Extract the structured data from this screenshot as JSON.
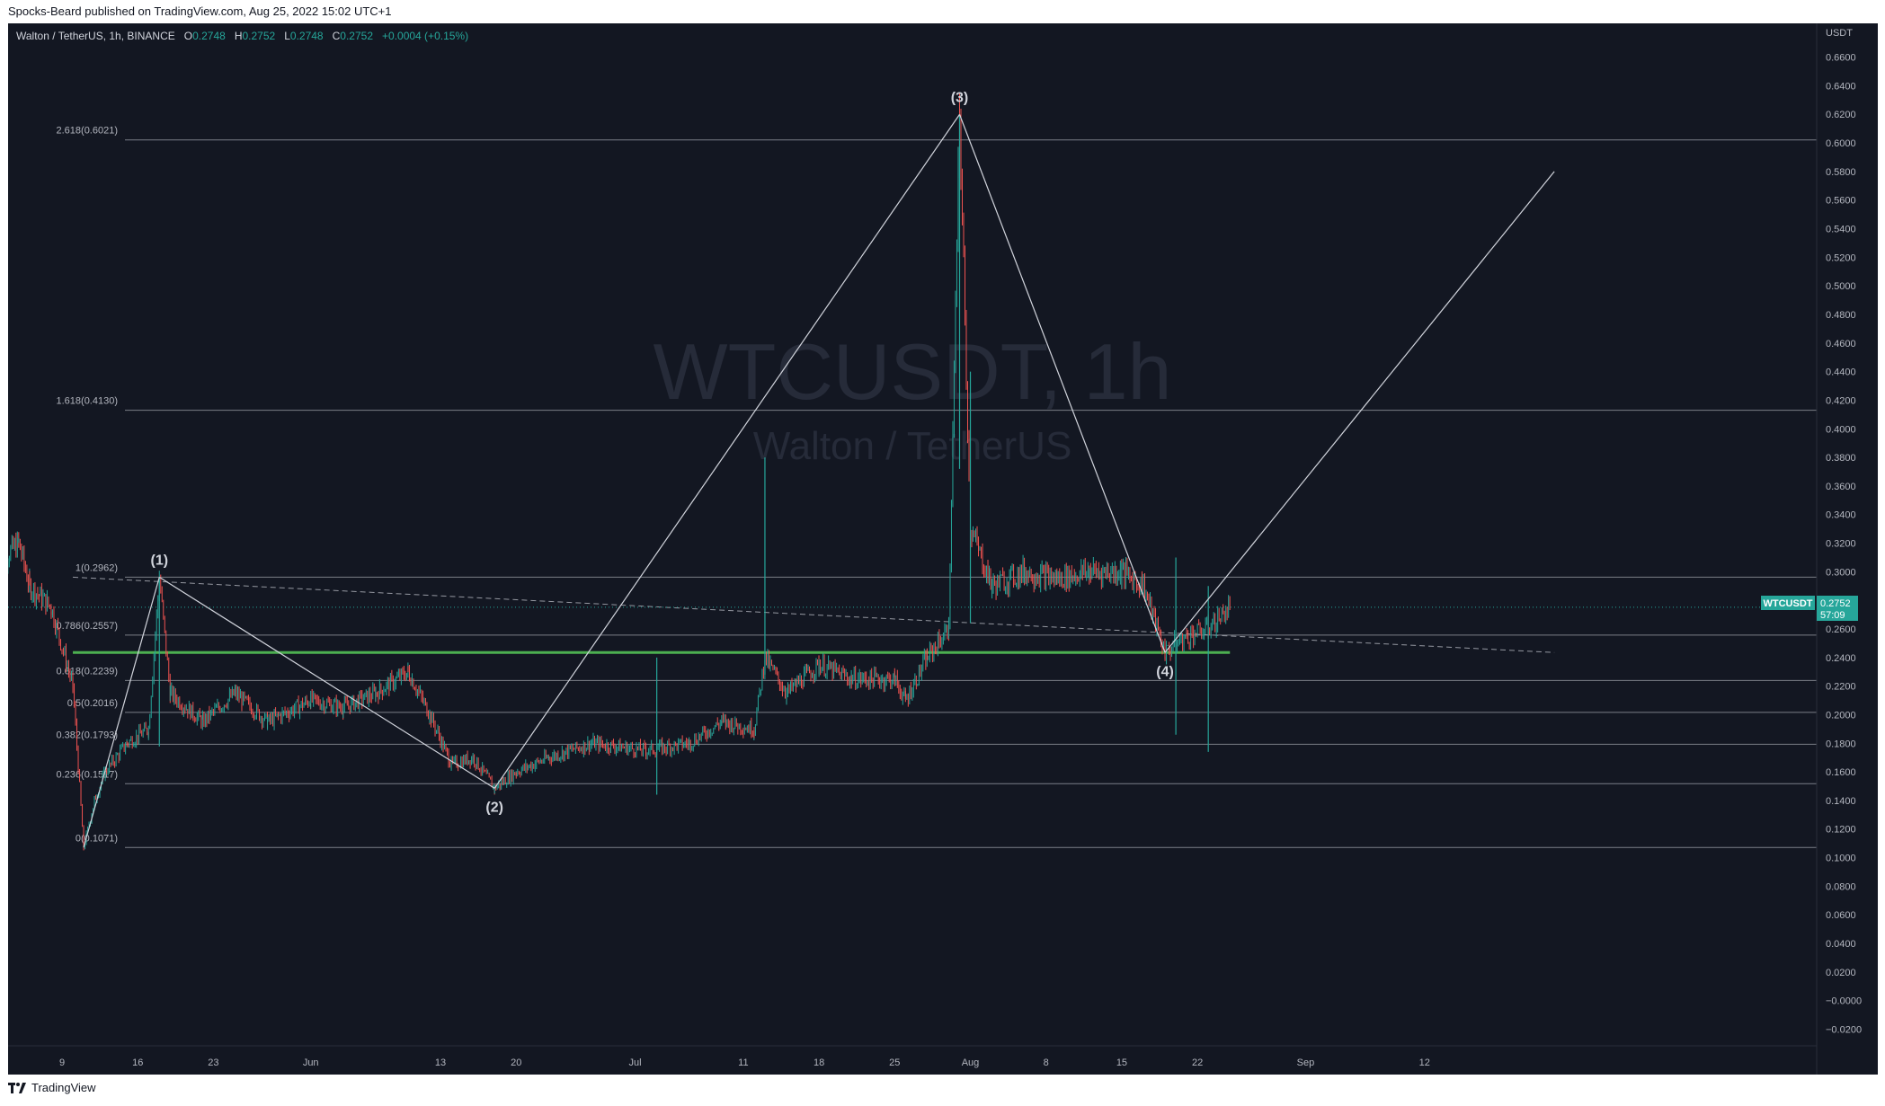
{
  "header": {
    "published": "Spocks-Beard published on TradingView.com, Aug 25, 2022 15:02 UTC+1"
  },
  "legend": {
    "symbol": "Walton / TetherUS, 1h, BINANCE",
    "o_label": "O",
    "o": "0.2748",
    "h_label": "H",
    "h": "0.2752",
    "l_label": "L",
    "l": "0.2748",
    "c_label": "C",
    "c": "0.2752",
    "change": "+0.0004 (+0.15%)"
  },
  "watermark": {
    "main": "WTCUSDT, 1h",
    "sub": "Walton / TetherUS"
  },
  "price_tag": {
    "symbol": "WTCUSDT",
    "price": "0.2752",
    "countdown": "57:09"
  },
  "footer": {
    "brand": "TradingView"
  },
  "colors": {
    "background": "#131722",
    "up": "#26a69a",
    "down": "#ef5350",
    "support": "#4caf50",
    "text": "#b2b5be"
  },
  "chart_data": {
    "type": "candlestick",
    "y_axis_unit": "USDT",
    "y_ticks": [
      "0.6600",
      "0.6400",
      "0.6200",
      "0.6000",
      "0.5800",
      "0.5600",
      "0.5400",
      "0.5200",
      "0.5000",
      "0.4800",
      "0.4600",
      "0.4400",
      "0.4200",
      "0.4000",
      "0.3800",
      "0.3600",
      "0.3400",
      "0.3200",
      "0.3000",
      "0.2800",
      "0.2600",
      "0.2400",
      "0.2200",
      "0.2000",
      "0.1800",
      "0.1600",
      "0.1400",
      "0.1200",
      "0.1000",
      "0.0800",
      "0.0600",
      "0.0400",
      "0.0200",
      "−0.0000",
      "−0.0200"
    ],
    "x_ticks": [
      {
        "label": "9",
        "date": "2022-05-09"
      },
      {
        "label": "16",
        "date": "2022-05-16"
      },
      {
        "label": "23",
        "date": "2022-05-23"
      },
      {
        "label": "Jun",
        "date": "2022-06-01"
      },
      {
        "label": "13",
        "date": "2022-06-13"
      },
      {
        "label": "20",
        "date": "2022-06-20"
      },
      {
        "label": "Jul",
        "date": "2022-07-01"
      },
      {
        "label": "11",
        "date": "2022-07-11"
      },
      {
        "label": "18",
        "date": "2022-07-18"
      },
      {
        "label": "25",
        "date": "2022-07-25"
      },
      {
        "label": "Aug",
        "date": "2022-08-01"
      },
      {
        "label": "8",
        "date": "2022-08-08"
      },
      {
        "label": "15",
        "date": "2022-08-15"
      },
      {
        "label": "22",
        "date": "2022-08-22"
      },
      {
        "label": "Sep",
        "date": "2022-09-01"
      },
      {
        "label": "12",
        "date": "2022-09-12"
      }
    ],
    "price_path": [
      [
        "2022-05-03",
        0.305
      ],
      [
        "2022-05-05",
        0.32
      ],
      [
        "2022-05-06",
        0.29
      ],
      [
        "2022-05-08",
        0.275
      ],
      [
        "2022-05-10",
        0.22
      ],
      [
        "2022-05-11",
        0.1071
      ],
      [
        "2022-05-12",
        0.14
      ],
      [
        "2022-05-13",
        0.16
      ],
      [
        "2022-05-15",
        0.18
      ],
      [
        "2022-05-17",
        0.19
      ],
      [
        "2022-05-18",
        0.2962
      ],
      [
        "2022-05-19",
        0.215
      ],
      [
        "2022-05-22",
        0.195
      ],
      [
        "2022-05-25",
        0.215
      ],
      [
        "2022-05-28",
        0.195
      ],
      [
        "2022-06-01",
        0.21
      ],
      [
        "2022-06-04",
        0.205
      ],
      [
        "2022-06-07",
        0.215
      ],
      [
        "2022-06-10",
        0.23
      ],
      [
        "2022-06-12",
        0.2
      ],
      [
        "2022-06-14",
        0.165
      ],
      [
        "2022-06-16",
        0.17
      ],
      [
        "2022-06-18",
        0.1485
      ],
      [
        "2022-06-20",
        0.16
      ],
      [
        "2022-06-23",
        0.17
      ],
      [
        "2022-06-27",
        0.18
      ],
      [
        "2022-07-02",
        0.175
      ],
      [
        "2022-07-06",
        0.18
      ],
      [
        "2022-07-09",
        0.195
      ],
      [
        "2022-07-12",
        0.19
      ],
      [
        "2022-07-13",
        0.24
      ],
      [
        "2022-07-15",
        0.215
      ],
      [
        "2022-07-18",
        0.235
      ],
      [
        "2022-07-21",
        0.225
      ],
      [
        "2022-07-25",
        0.225
      ],
      [
        "2022-07-26",
        0.21
      ],
      [
        "2022-07-28",
        0.24
      ],
      [
        "2022-07-30",
        0.26
      ],
      [
        "2022-07-31",
        0.6199
      ],
      [
        "2022-08-01",
        0.33
      ],
      [
        "2022-08-03",
        0.29
      ],
      [
        "2022-08-06",
        0.3
      ],
      [
        "2022-08-09",
        0.295
      ],
      [
        "2022-08-12",
        0.3
      ],
      [
        "2022-08-15",
        0.3
      ],
      [
        "2022-08-17",
        0.29
      ],
      [
        "2022-08-19",
        0.2435
      ],
      [
        "2022-08-21",
        0.255
      ],
      [
        "2022-08-23",
        0.26
      ],
      [
        "2022-08-25",
        0.2752
      ]
    ],
    "wick_highs": [
      [
        "2022-05-18",
        0.2962
      ],
      [
        "2022-07-13",
        0.38
      ],
      [
        "2022-07-31",
        0.6199
      ],
      [
        "2022-08-01",
        0.44
      ],
      [
        "2022-07-03",
        0.24
      ],
      [
        "2022-08-20",
        0.31
      ],
      [
        "2022-08-23",
        0.29
      ]
    ],
    "fibonacci": [
      {
        "label": "0(0.1071)",
        "value": 0.1071
      },
      {
        "label": "0.236(0.1517)",
        "value": 0.1517
      },
      {
        "label": "0.382(0.1793)",
        "value": 0.1793
      },
      {
        "label": "0.5(0.2016)",
        "value": 0.2016
      },
      {
        "label": "0.618(0.2239)",
        "value": 0.2239
      },
      {
        "label": "0.786(0.2557)",
        "value": 0.2557
      },
      {
        "label": "1(0.2962)",
        "value": 0.2962
      },
      {
        "label": "1.618(0.4130)",
        "value": 0.413
      },
      {
        "label": "2.618(0.6021)",
        "value": 0.6021
      }
    ],
    "waves": [
      {
        "label": "(1)",
        "date": "2022-05-18",
        "price": 0.2962,
        "pos": "above"
      },
      {
        "label": "(2)",
        "date": "2022-06-18",
        "price": 0.1485,
        "pos": "below"
      },
      {
        "label": "(3)",
        "date": "2022-07-31",
        "price": 0.6199,
        "pos": "above"
      },
      {
        "label": "(4)",
        "date": "2022-08-19",
        "price": 0.2435,
        "pos": "below"
      }
    ],
    "wave_path": [
      [
        "2022-05-11",
        0.1071
      ],
      [
        "2022-05-18",
        0.2962
      ],
      [
        "2022-06-18",
        0.1485
      ],
      [
        "2022-07-31",
        0.6199
      ],
      [
        "2022-08-19",
        0.2435
      ],
      [
        "2022-09-24",
        0.58
      ]
    ],
    "support_line": {
      "start": "2022-05-10",
      "end": "2022-08-25",
      "value": 0.2435
    },
    "trendline": {
      "start": "2022-05-10",
      "end": "2022-09-24",
      "v0": 0.2962,
      "v1": 0.2435
    },
    "current_price": 0.2752,
    "grid": false
  }
}
